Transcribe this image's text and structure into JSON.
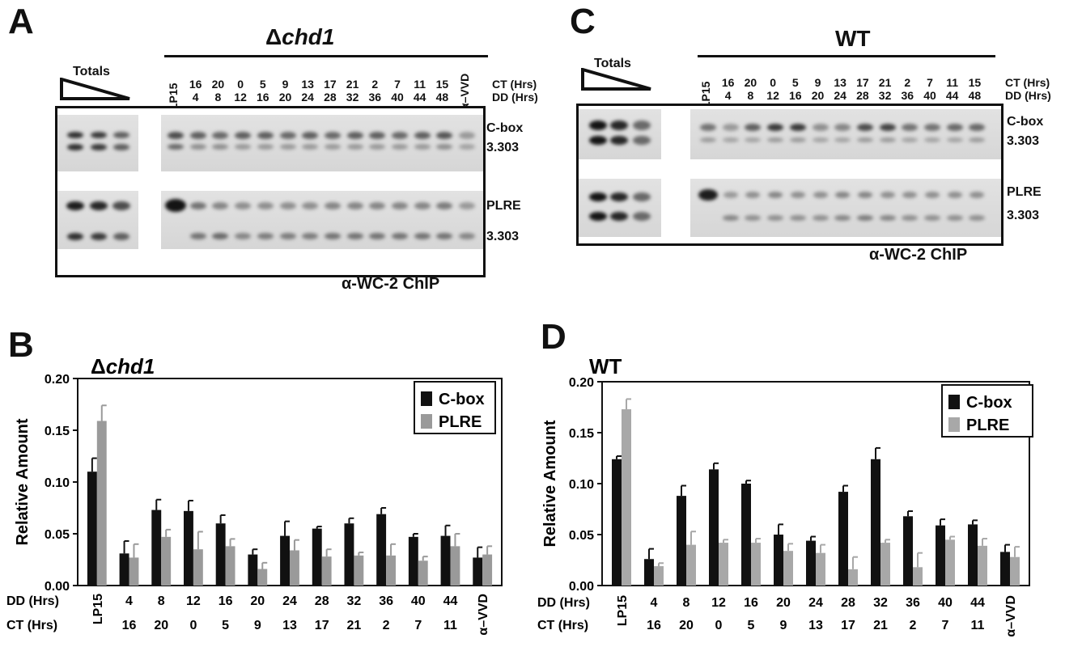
{
  "panels": {
    "A": {
      "letter": "A",
      "title_delta": "Δ",
      "title_gene": "chd1",
      "totals_label": "Totals",
      "lane_top": [
        "LP15",
        "16",
        "20",
        "0",
        "5",
        "9",
        "13",
        "17",
        "21",
        "2",
        "7",
        "11",
        "15",
        "α–VVD"
      ],
      "lane_bottom": [
        "",
        "4",
        "8",
        "12",
        "16",
        "20",
        "24",
        "28",
        "32",
        "36",
        "40",
        "44",
        "48",
        ""
      ],
      "ct_label": "CT (Hrs)",
      "dd_label": "DD (Hrs)",
      "band_labels": [
        "C-box",
        "3.303",
        "PLRE",
        "3.303"
      ],
      "chip_label": "α-WC-2 ChIP"
    },
    "C": {
      "letter": "C",
      "title": "WT",
      "totals_label": "Totals",
      "lane_top": [
        "LP15",
        "16",
        "20",
        "0",
        "5",
        "9",
        "13",
        "17",
        "21",
        "2",
        "7",
        "11",
        "15"
      ],
      "lane_bottom": [
        "",
        "4",
        "8",
        "12",
        "16",
        "20",
        "24",
        "28",
        "32",
        "36",
        "40",
        "44",
        "48"
      ],
      "ct_label": "CT (Hrs)",
      "dd_label": "DD (Hrs)",
      "band_labels": [
        "C-box",
        "3.303",
        "PLRE",
        "3.303"
      ],
      "chip_label": "α-WC-2 ChIP"
    },
    "B": {
      "letter": "B"
    },
    "D": {
      "letter": "D"
    }
  },
  "chart_data": [
    {
      "type": "bar",
      "panel": "B",
      "title_delta": "Δ",
      "title_gene": "chd1",
      "ylabel": "Relative Amount",
      "ylim": [
        0,
        0.2
      ],
      "yticks": [
        "0.00",
        "0.05",
        "0.10",
        "0.15",
        "0.20"
      ],
      "categories": [
        "LP15",
        "4",
        "8",
        "12",
        "16",
        "20",
        "24",
        "28",
        "32",
        "36",
        "40",
        "44",
        "α–VVD"
      ],
      "row_labels": [
        "DD (Hrs)",
        "CT (Hrs)"
      ],
      "dd_row": [
        "",
        "4",
        "8",
        "12",
        "16",
        "20",
        "24",
        "28",
        "32",
        "36",
        "40",
        "44",
        ""
      ],
      "ct_row": [
        "",
        "16",
        "20",
        "0",
        "5",
        "9",
        "13",
        "17",
        "21",
        "2",
        "7",
        "11",
        ""
      ],
      "vertical_labels": [
        "LP15",
        "α–VVD"
      ],
      "legend_position": "top-right",
      "series": [
        {
          "name": "C-box",
          "color": "#111111",
          "values": [
            0.11,
            0.031,
            0.073,
            0.072,
            0.06,
            0.03,
            0.048,
            0.055,
            0.06,
            0.069,
            0.047,
            0.048,
            0.027
          ],
          "errors": [
            0.013,
            0.012,
            0.01,
            0.01,
            0.008,
            0.005,
            0.014,
            0.002,
            0.005,
            0.006,
            0.003,
            0.01,
            0.01
          ]
        },
        {
          "name": "PLRE",
          "color": "#9a9a9a",
          "values": [
            0.159,
            0.027,
            0.047,
            0.035,
            0.038,
            0.016,
            0.034,
            0.028,
            0.029,
            0.029,
            0.024,
            0.038,
            0.03
          ],
          "errors": [
            0.015,
            0.013,
            0.007,
            0.017,
            0.007,
            0.006,
            0.01,
            0.007,
            0.003,
            0.011,
            0.004,
            0.012,
            0.008
          ]
        }
      ]
    },
    {
      "type": "bar",
      "panel": "D",
      "title": "WT",
      "ylabel": "Relative Amount",
      "ylim": [
        0,
        0.2
      ],
      "yticks": [
        "0.00",
        "0.05",
        "0.10",
        "0.15",
        "0.20"
      ],
      "categories": [
        "LP15",
        "4",
        "8",
        "12",
        "16",
        "20",
        "24",
        "28",
        "32",
        "36",
        "40",
        "44",
        "α–VVD"
      ],
      "row_labels": [
        "DD (Hrs)",
        "CT (Hrs)"
      ],
      "dd_row": [
        "",
        "4",
        "8",
        "12",
        "16",
        "20",
        "24",
        "28",
        "32",
        "36",
        "40",
        "44",
        ""
      ],
      "ct_row": [
        "",
        "16",
        "20",
        "0",
        "5",
        "9",
        "13",
        "17",
        "21",
        "2",
        "7",
        "11",
        ""
      ],
      "vertical_labels": [
        "LP15",
        "α–VVD"
      ],
      "legend_position": "top-right",
      "series": [
        {
          "name": "C-box",
          "color": "#111111",
          "values": [
            0.124,
            0.026,
            0.088,
            0.114,
            0.1,
            0.05,
            0.044,
            0.092,
            0.124,
            0.068,
            0.059,
            0.06,
            0.033
          ],
          "errors": [
            0.003,
            0.01,
            0.01,
            0.006,
            0.003,
            0.01,
            0.004,
            0.006,
            0.011,
            0.005,
            0.006,
            0.004,
            0.007
          ]
        },
        {
          "name": "PLRE",
          "color": "#a8a8a8",
          "values": [
            0.173,
            0.019,
            0.04,
            0.042,
            0.042,
            0.034,
            0.032,
            0.016,
            0.042,
            0.018,
            0.045,
            0.039,
            0.028
          ],
          "errors": [
            0.01,
            0.003,
            0.013,
            0.003,
            0.004,
            0.007,
            0.008,
            0.012,
            0.003,
            0.014,
            0.003,
            0.007,
            0.01
          ]
        }
      ]
    }
  ]
}
